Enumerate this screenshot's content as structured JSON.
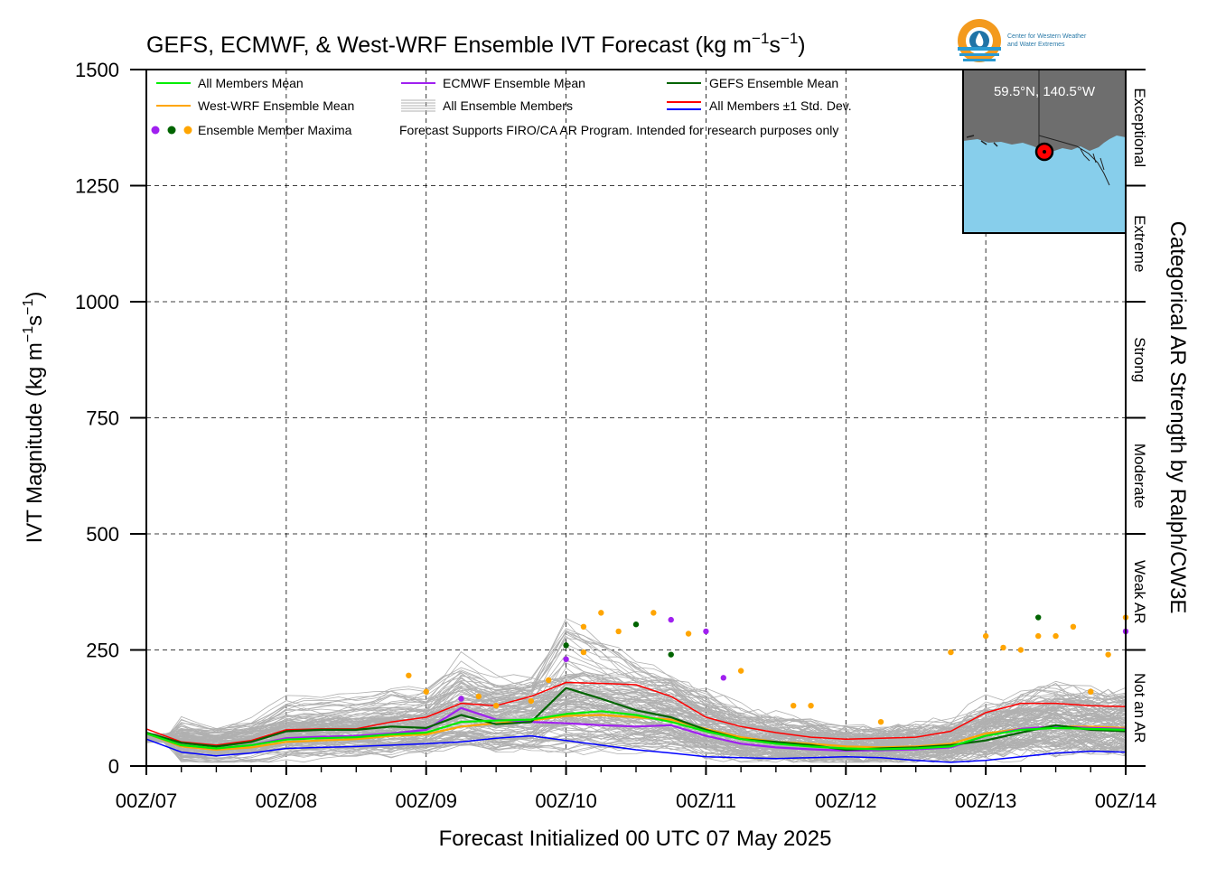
{
  "chart_data": {
    "type": "line",
    "title": "GEFS, ECMWF, & West-WRF Ensemble IVT Forecast (kg m⁻¹s⁻¹)",
    "title_main": "GEFS, ECMWF, & West-WRF Ensemble IVT Forecast (kg m",
    "title_sup1": "−1",
    "title_mid": "s",
    "title_sup2": "−1",
    "title_end": ")",
    "ylabel_main": "IVT Magnitude (kg m",
    "ylabel_sup1": "−1",
    "ylabel_mid": "s",
    "ylabel_sup2": "−1",
    "ylabel_end": ")",
    "xlabel": "Forecast Initialized 00 UTC 07 May 2025",
    "right_label": "Categorical AR Strength by Ralph/CW3E",
    "ylim": [
      0,
      1500
    ],
    "xlim": [
      0,
      168
    ],
    "x_units": "forecast hours",
    "grid": true,
    "y_ticks": [
      0,
      250,
      500,
      750,
      1000,
      1250,
      1500
    ],
    "y_tick_labels": [
      "0",
      "250",
      "500",
      "750",
      "1000",
      "1250",
      "1500"
    ],
    "x_ticks": [
      0,
      24,
      48,
      72,
      96,
      120,
      144,
      168
    ],
    "x_tick_labels": [
      "00Z/07",
      "00Z/08",
      "00Z/09",
      "00Z/10",
      "00Z/11",
      "00Z/12",
      "00Z/13",
      "00Z/14"
    ],
    "categories_ar": [
      {
        "label": "Not an AR",
        "from": 0,
        "to": 250
      },
      {
        "label": "Weak AR",
        "from": 250,
        "to": 500
      },
      {
        "label": "Moderate",
        "from": 500,
        "to": 750
      },
      {
        "label": "Strong",
        "from": 750,
        "to": 1000
      },
      {
        "label": "Extreme",
        "from": 1000,
        "to": 1250
      },
      {
        "label": "Exceptional",
        "from": 1250,
        "to": 1500
      }
    ],
    "legend_position": "top-left",
    "legend": [
      {
        "label": "All Members Mean",
        "color": "#00ee00",
        "kind": "line"
      },
      {
        "label": "ECMWF Ensemble Mean",
        "color": "#a020f0",
        "kind": "line"
      },
      {
        "label": "GEFS Ensemble Mean",
        "color": "#006400",
        "kind": "line"
      },
      {
        "label": "West-WRF Ensemble Mean",
        "color": "#ffa500",
        "kind": "line"
      },
      {
        "label": "All Ensemble Members",
        "color": "#b0b0b0",
        "kind": "multiline"
      },
      {
        "label": "All Members ±1 Std. Dev.",
        "color": "#ff0000",
        "color2": "#0000ff",
        "kind": "twoline"
      },
      {
        "label": "Ensemble Member Maxima",
        "colors": [
          "#a020f0",
          "#006400",
          "#ffa500"
        ],
        "kind": "dots"
      }
    ],
    "note": "Forecast Supports FIRO/CA AR Program. Intended for research purposes only",
    "inset_location": "59.5°N, 140.5°W",
    "logo_line1": "Center for Western Weather",
    "logo_line2": "and Water Extremes",
    "x": [
      0,
      6,
      12,
      18,
      24,
      30,
      36,
      42,
      48,
      54,
      60,
      66,
      72,
      78,
      84,
      90,
      96,
      102,
      108,
      114,
      120,
      126,
      132,
      138,
      144,
      150,
      156,
      162,
      168
    ],
    "series": [
      {
        "name": "All Members Mean",
        "color": "#00ee00",
        "width": 2.2,
        "values": [
          70,
          45,
          38,
          45,
          57,
          60,
          62,
          68,
          72,
          95,
          98,
          100,
          112,
          118,
          110,
          95,
          75,
          58,
          48,
          42,
          38,
          36,
          38,
          42,
          65,
          78,
          82,
          80,
          78
        ]
      },
      {
        "name": "ECMWF Ensemble Mean",
        "color": "#a020f0",
        "width": 2.2,
        "values": [
          70,
          45,
          38,
          45,
          60,
          63,
          65,
          70,
          78,
          125,
          100,
          95,
          92,
          88,
          85,
          88,
          65,
          48,
          40,
          36,
          33,
          34,
          36,
          40,
          65,
          80,
          85,
          82,
          80
        ]
      },
      {
        "name": "GEFS Ensemble Mean",
        "color": "#006400",
        "width": 2.2,
        "values": [
          72,
          50,
          42,
          52,
          75,
          78,
          78,
          85,
          82,
          110,
          90,
          95,
          168,
          145,
          120,
          105,
          78,
          58,
          52,
          45,
          35,
          38,
          40,
          45,
          55,
          72,
          88,
          78,
          75
        ]
      },
      {
        "name": "West-WRF Ensemble Mean",
        "color": "#ffa500",
        "width": 2.2,
        "values": [
          70,
          42,
          35,
          40,
          52,
          55,
          58,
          65,
          68,
          85,
          92,
          98,
          108,
          110,
          105,
          100,
          80,
          62,
          52,
          48,
          42,
          40,
          42,
          48,
          70,
          80,
          85,
          85,
          82
        ]
      },
      {
        "name": "All Members +1 Std. Dev.",
        "color": "#ff0000",
        "width": 1.5,
        "values": [
          80,
          52,
          45,
          55,
          78,
          80,
          80,
          95,
          105,
          135,
          130,
          150,
          180,
          178,
          175,
          150,
          105,
          85,
          72,
          62,
          58,
          60,
          62,
          75,
          115,
          135,
          135,
          130,
          128
        ]
      },
      {
        "name": "All Members -1 Std. Dev.",
        "color": "#0000ff",
        "width": 1.5,
        "values": [
          58,
          30,
          22,
          28,
          38,
          40,
          42,
          45,
          48,
          52,
          60,
          65,
          55,
          45,
          35,
          28,
          20,
          18,
          16,
          18,
          20,
          18,
          12,
          8,
          12,
          20,
          28,
          32,
          30
        ]
      }
    ],
    "member_maxima": [
      {
        "x": 45,
        "y": 195,
        "color": "#ffa500"
      },
      {
        "x": 48,
        "y": 160,
        "color": "#ffa500"
      },
      {
        "x": 54,
        "y": 145,
        "color": "#a020f0"
      },
      {
        "x": 57,
        "y": 150,
        "color": "#ffa500"
      },
      {
        "x": 60,
        "y": 130,
        "color": "#ffa500"
      },
      {
        "x": 66,
        "y": 140,
        "color": "#ffa500"
      },
      {
        "x": 69,
        "y": 185,
        "color": "#ffa500"
      },
      {
        "x": 72,
        "y": 260,
        "color": "#006400"
      },
      {
        "x": 72,
        "y": 230,
        "color": "#a020f0"
      },
      {
        "x": 75,
        "y": 300,
        "color": "#ffa500"
      },
      {
        "x": 75,
        "y": 245,
        "color": "#ffa500"
      },
      {
        "x": 78,
        "y": 330,
        "color": "#ffa500"
      },
      {
        "x": 81,
        "y": 290,
        "color": "#ffa500"
      },
      {
        "x": 84,
        "y": 305,
        "color": "#006400"
      },
      {
        "x": 87,
        "y": 330,
        "color": "#ffa500"
      },
      {
        "x": 90,
        "y": 315,
        "color": "#a020f0"
      },
      {
        "x": 90,
        "y": 240,
        "color": "#006400"
      },
      {
        "x": 93,
        "y": 285,
        "color": "#ffa500"
      },
      {
        "x": 96,
        "y": 290,
        "color": "#a020f0"
      },
      {
        "x": 99,
        "y": 190,
        "color": "#a020f0"
      },
      {
        "x": 102,
        "y": 205,
        "color": "#ffa500"
      },
      {
        "x": 111,
        "y": 130,
        "color": "#ffa500"
      },
      {
        "x": 114,
        "y": 130,
        "color": "#ffa500"
      },
      {
        "x": 126,
        "y": 95,
        "color": "#ffa500"
      },
      {
        "x": 138,
        "y": 245,
        "color": "#ffa500"
      },
      {
        "x": 144,
        "y": 280,
        "color": "#ffa500"
      },
      {
        "x": 147,
        "y": 255,
        "color": "#ffa500"
      },
      {
        "x": 150,
        "y": 250,
        "color": "#ffa500"
      },
      {
        "x": 153,
        "y": 320,
        "color": "#006400"
      },
      {
        "x": 153,
        "y": 280,
        "color": "#ffa500"
      },
      {
        "x": 156,
        "y": 280,
        "color": "#ffa500"
      },
      {
        "x": 159,
        "y": 300,
        "color": "#ffa500"
      },
      {
        "x": 162,
        "y": 160,
        "color": "#ffa500"
      },
      {
        "x": 165,
        "y": 240,
        "color": "#ffa500"
      },
      {
        "x": 168,
        "y": 320,
        "color": "#ffa500"
      },
      {
        "x": 168,
        "y": 290,
        "color": "#a020f0"
      }
    ]
  }
}
